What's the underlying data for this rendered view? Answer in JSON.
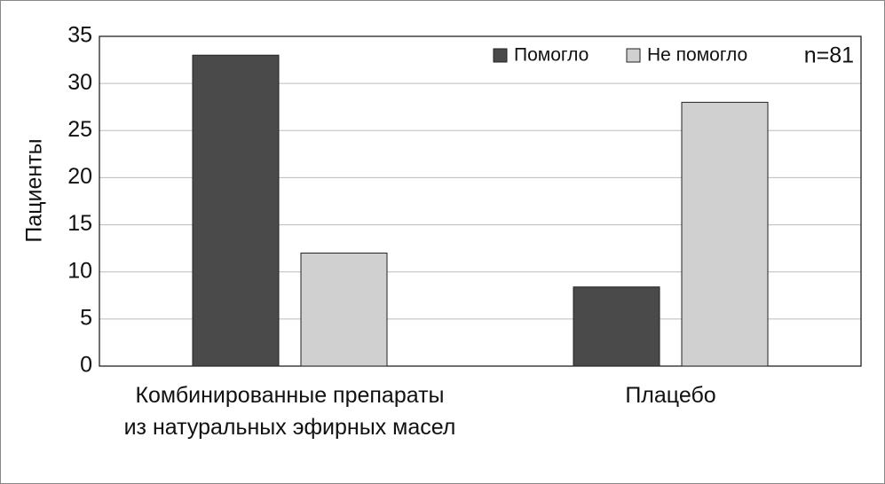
{
  "chart_data": {
    "type": "bar",
    "y_label": "Пациенты",
    "annotation": "n=81",
    "categories": [
      "Комбинированные препараты\nиз натуральных эфирных масел",
      "Плацебо"
    ],
    "series": [
      {
        "name": "Помогло",
        "color": "#4a4a4a",
        "values": [
          33,
          8.4
        ]
      },
      {
        "name": "Не помогло",
        "color": "#d0d0d0",
        "values": [
          12,
          28
        ]
      }
    ],
    "ylim": [
      0,
      35
    ],
    "yticks": [
      0,
      5,
      10,
      15,
      20,
      25,
      30,
      35
    ],
    "grid": true
  }
}
